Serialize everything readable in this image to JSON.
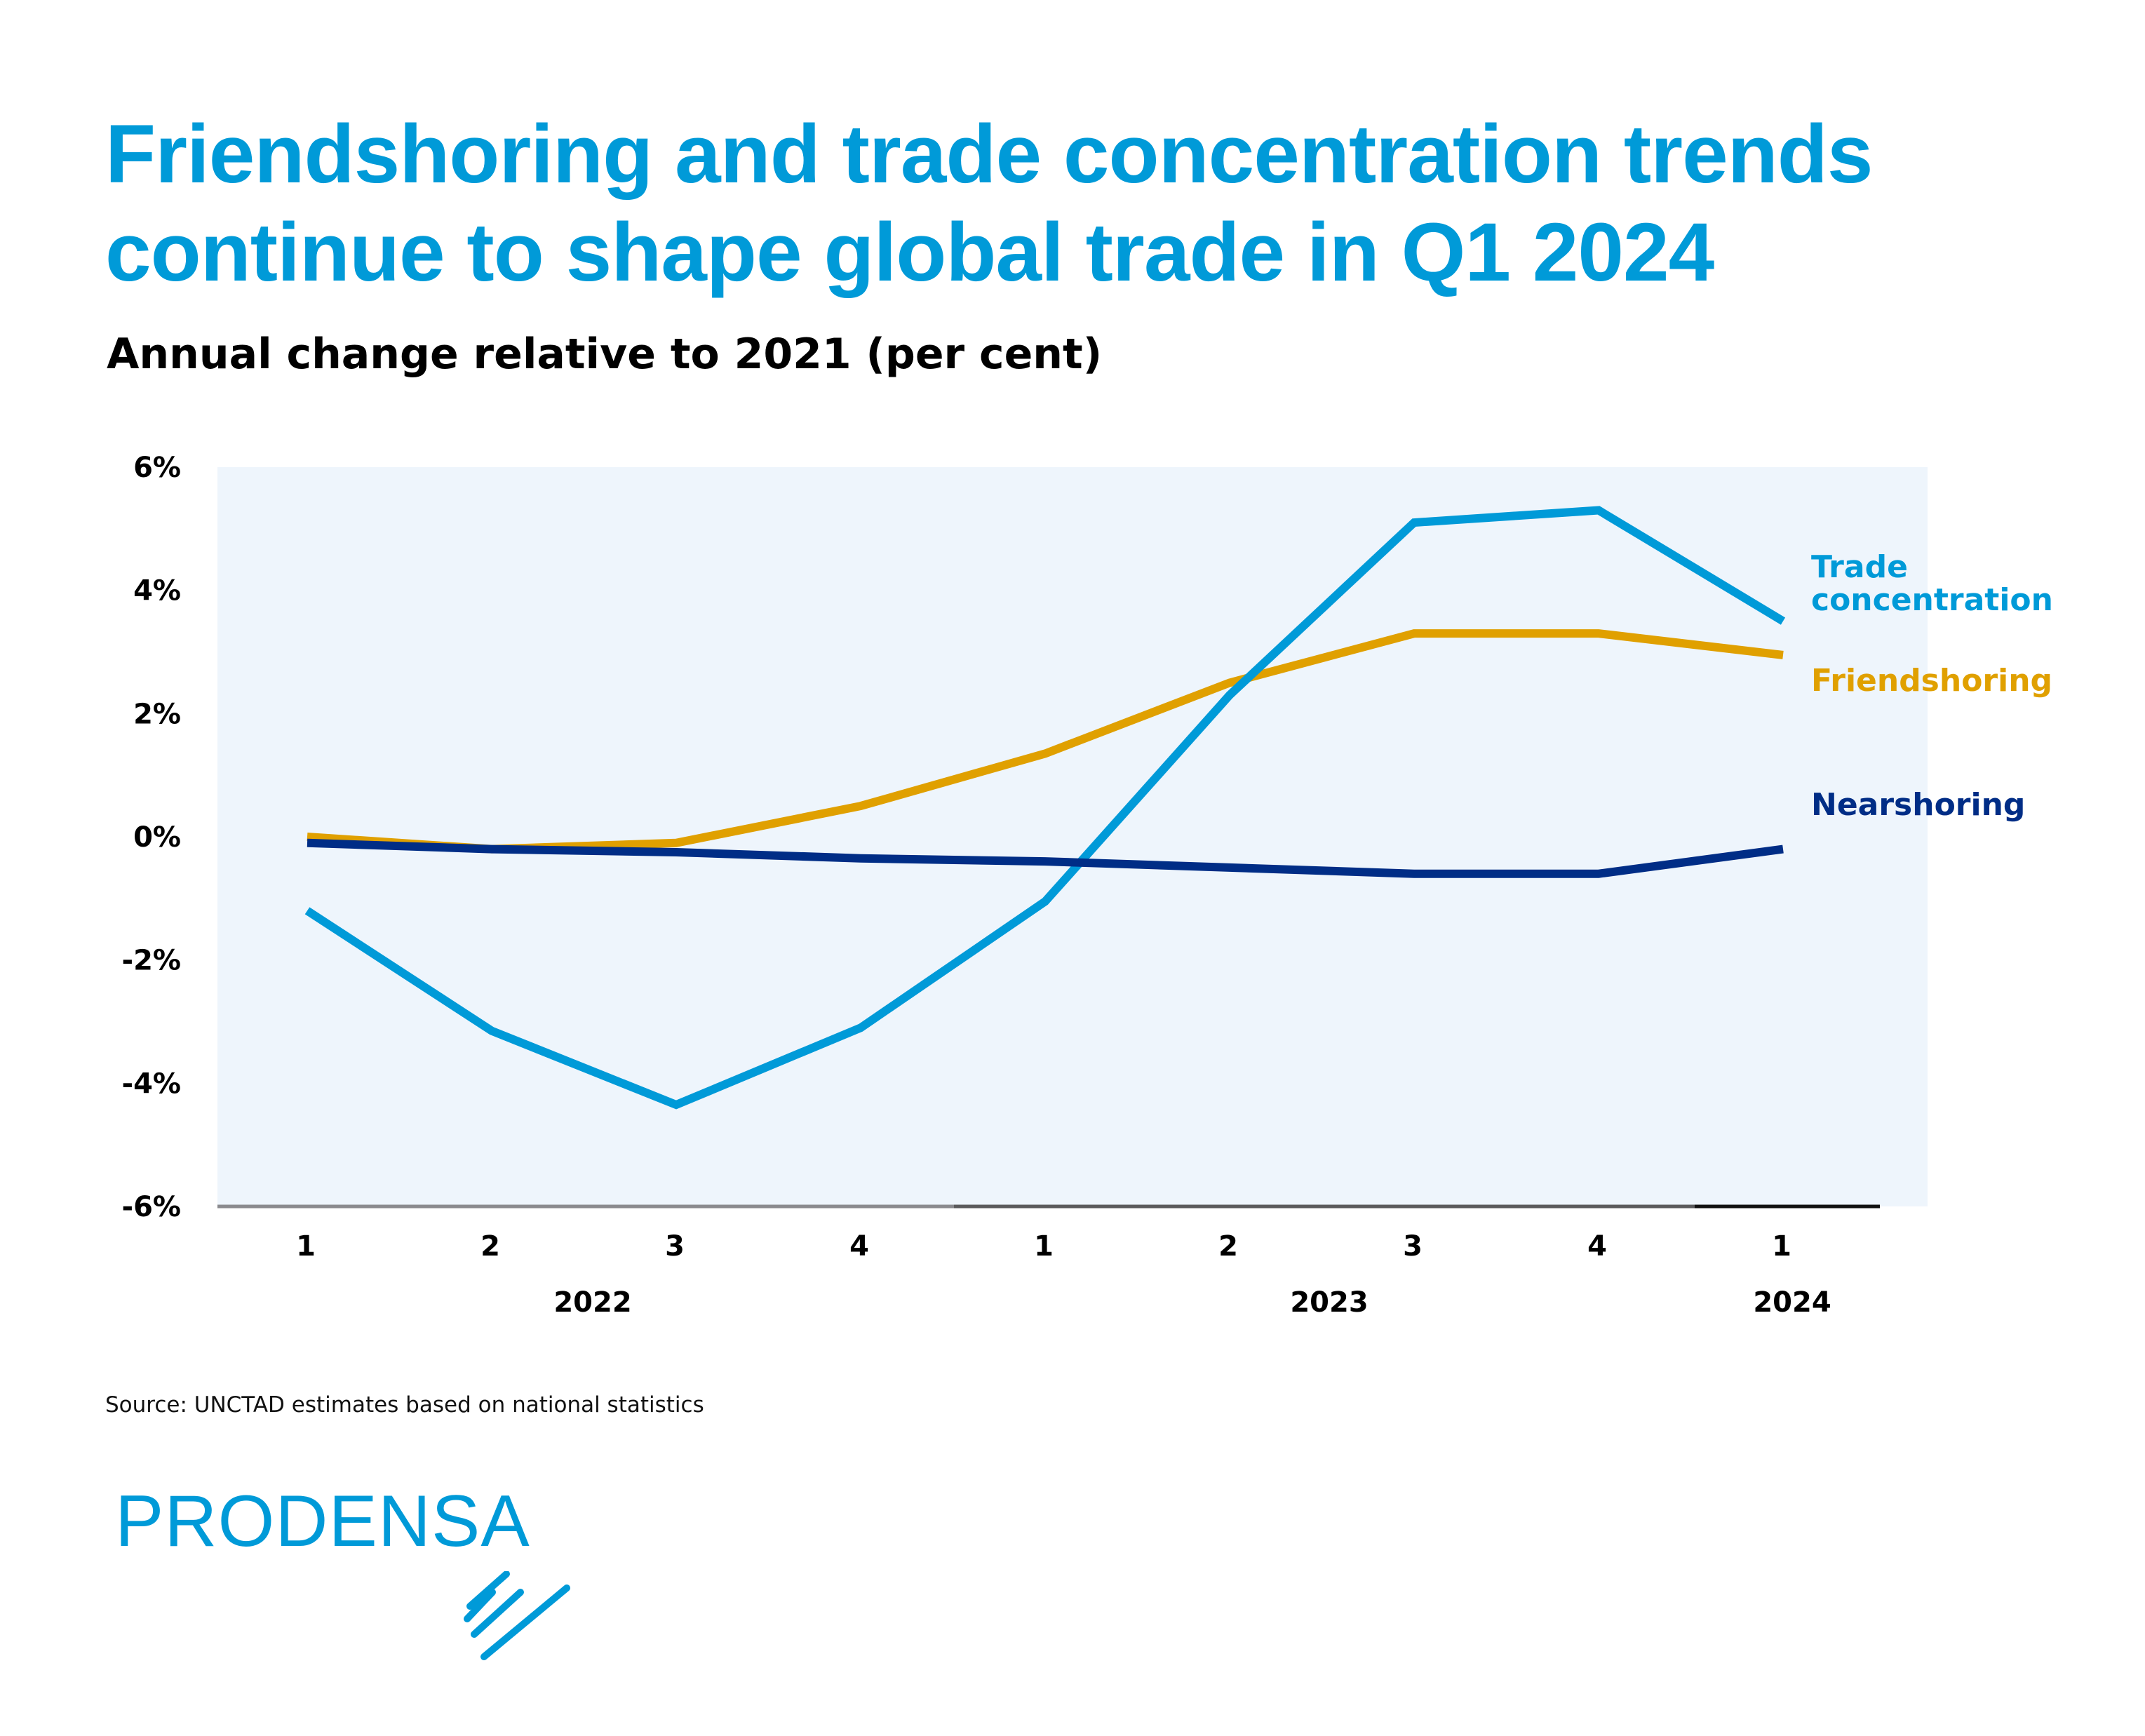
{
  "header": {
    "title": "Friendshoring and trade concentration trends continue to shape global trade in Q1 2024",
    "subtitle": "Annual change relative to 2021 (per cent)"
  },
  "colors": {
    "trade_concentration": "#009ad8",
    "friendshoring": "#e0a000",
    "nearshoring": "#002d86",
    "plot_background": "#eef5fc",
    "title": "#009ad8"
  },
  "chart_data": {
    "type": "line",
    "title": "Friendshoring and trade concentration trends continue to shape global trade in Q1 2024",
    "subtitle": "Annual change relative to 2021 (per cent)",
    "xlabel": "",
    "ylabel": "",
    "x": [
      "2022 Q1",
      "2022 Q2",
      "2022 Q3",
      "2022 Q4",
      "2023 Q1",
      "2023 Q2",
      "2023 Q3",
      "2023 Q4",
      "2024 Q1"
    ],
    "x_tick_labels": [
      "1",
      "2",
      "3",
      "4",
      "1",
      "2",
      "3",
      "4",
      "1"
    ],
    "x_group_labels": [
      {
        "label": "2022",
        "span": [
          0,
          3
        ]
      },
      {
        "label": "2023",
        "span": [
          4,
          7
        ]
      },
      {
        "label": "2024",
        "span": [
          8,
          8
        ]
      }
    ],
    "y_tick_labels": [
      "6%",
      "4%",
      "2%",
      "0%",
      "-2%",
      "-4%",
      "-6%"
    ],
    "y_ticks": [
      6,
      4,
      2,
      0,
      -2,
      -4,
      -6
    ],
    "ylim": [
      -6,
      6
    ],
    "grid": false,
    "legend": "right (direct labels at line ends)",
    "series": [
      {
        "name": "Trade concentration",
        "label_lines": [
          "Trade",
          "concentration"
        ],
        "color": "#009ad8",
        "values": [
          -1.2,
          -3.15,
          -4.35,
          -3.1,
          -1.05,
          2.3,
          5.1,
          5.3,
          3.5
        ]
      },
      {
        "name": "Friendshoring",
        "label_lines": [
          "Friendshoring"
        ],
        "color": "#e0a000",
        "values": [
          0.0,
          -0.2,
          -0.1,
          0.5,
          1.35,
          2.5,
          3.3,
          3.3,
          2.95
        ]
      },
      {
        "name": "Nearshoring",
        "label_lines": [
          "Nearshoring"
        ],
        "color": "#002d86",
        "values": [
          -0.1,
          -0.2,
          -0.25,
          -0.35,
          -0.4,
          -0.5,
          -0.6,
          -0.6,
          -0.2
        ]
      }
    ]
  },
  "footer": {
    "source": "Source: UNCTAD estimates based on national statistics",
    "logo_text": "PRODENSA",
    "logo_icon": "prodensa-stripes-icon"
  }
}
